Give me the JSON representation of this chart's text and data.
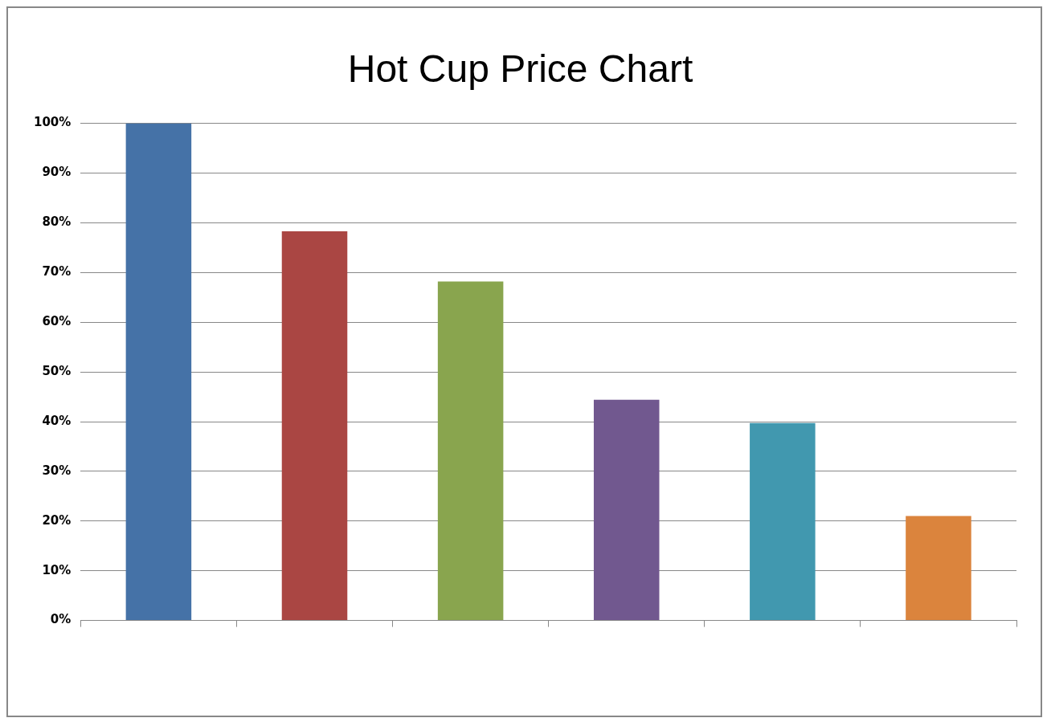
{
  "chart_data": {
    "type": "bar",
    "title": "Hot Cup Price Chart",
    "categories": [
      null,
      null,
      null,
      null,
      null,
      null
    ],
    "values": [
      100,
      78.3,
      68.2,
      44.4,
      39.7,
      21
    ],
    "colors": [
      "#4572a7",
      "#aa4643",
      "#89a54e",
      "#71588f",
      "#4198af",
      "#db843d"
    ],
    "ylim": [
      0,
      100
    ],
    "yticks": [
      {
        "value": 0,
        "label": "0%"
      },
      {
        "value": 10,
        "label": "10%"
      },
      {
        "value": 20,
        "label": "20%"
      },
      {
        "value": 30,
        "label": "30%"
      },
      {
        "value": 40,
        "label": "40%"
      },
      {
        "value": 50,
        "label": "50%"
      },
      {
        "value": 60,
        "label": "60%"
      },
      {
        "value": 70,
        "label": "70%"
      },
      {
        "value": 80,
        "label": "80%"
      },
      {
        "value": 90,
        "label": "90%"
      },
      {
        "value": 100,
        "label": "100%"
      }
    ],
    "grid": "y",
    "legend": false
  }
}
